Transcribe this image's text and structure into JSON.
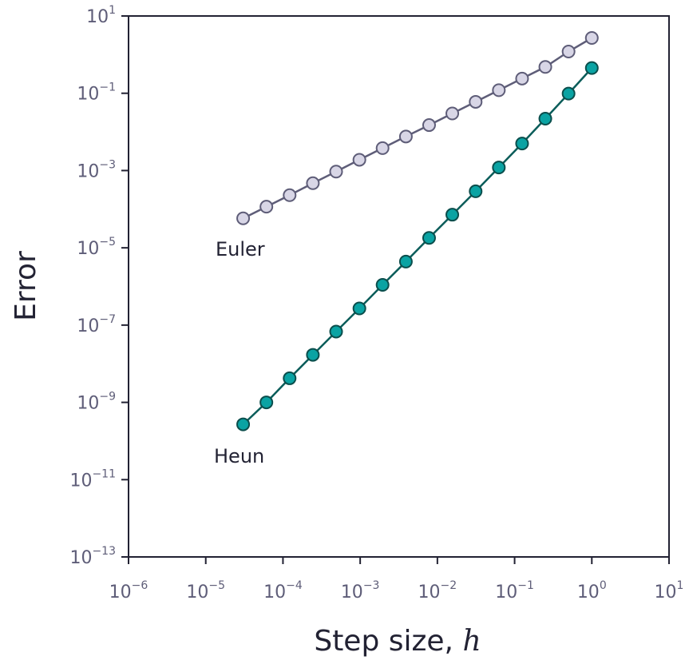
{
  "chart_data": {
    "type": "line",
    "xscale": "log",
    "yscale": "log",
    "xlabel": "Step size, ",
    "xlabel_var": "h",
    "ylabel": "Error",
    "title": "",
    "xlim": [
      1e-06,
      10
    ],
    "ylim": [
      1e-13,
      10
    ],
    "grid": false,
    "x_ticks": [
      {
        "base": "10",
        "exp": "−6"
      },
      {
        "base": "10",
        "exp": "−5"
      },
      {
        "base": "10",
        "exp": "−4"
      },
      {
        "base": "10",
        "exp": "−3"
      },
      {
        "base": "10",
        "exp": "−2"
      },
      {
        "base": "10",
        "exp": "−1"
      },
      {
        "base": "10",
        "exp": "0"
      },
      {
        "base": "10",
        "exp": "1"
      }
    ],
    "y_ticks": [
      {
        "base": "10",
        "exp": "1"
      },
      {
        "base": "10",
        "exp": "−1"
      },
      {
        "base": "10",
        "exp": "−3"
      },
      {
        "base": "10",
        "exp": "−5"
      },
      {
        "base": "10",
        "exp": "−7"
      },
      {
        "base": "10",
        "exp": "−9"
      },
      {
        "base": "10",
        "exp": "−11"
      },
      {
        "base": "10",
        "exp": "−13"
      }
    ],
    "series": [
      {
        "name": "Euler",
        "line_color": "#5e5d78",
        "marker_fill": "#d8d6e6",
        "marker_edge": "#5e5d78",
        "x": [
          3.05e-05,
          6.1e-05,
          0.000122,
          0.000244,
          0.000488,
          0.000977,
          0.00195,
          0.00391,
          0.00781,
          0.0156,
          0.0313,
          0.0625,
          0.125,
          0.25,
          0.5,
          1
        ],
        "y": [
          5.8e-05,
          0.000116,
          0.00023,
          0.00047,
          0.00094,
          0.0019,
          0.0038,
          0.0076,
          0.015,
          0.03,
          0.06,
          0.12,
          0.24,
          0.48,
          1.2,
          2.7
        ]
      },
      {
        "name": "Heun",
        "line_color": "#0b5d5a",
        "marker_fill": "#0aa3a3",
        "marker_edge": "#0b4e4c",
        "x": [
          3.05e-05,
          6.1e-05,
          0.000122,
          0.000244,
          0.000488,
          0.000977,
          0.00195,
          0.00391,
          0.00781,
          0.0156,
          0.0313,
          0.0625,
          0.125,
          0.25,
          0.5,
          1
        ],
        "y": [
          2.7e-10,
          1e-09,
          4.2e-09,
          1.7e-08,
          6.8e-08,
          2.7e-07,
          1.1e-06,
          4.4e-06,
          1.8e-05,
          7.2e-05,
          0.00029,
          0.0012,
          0.005,
          0.022,
          0.098,
          0.45
        ]
      }
    ]
  }
}
